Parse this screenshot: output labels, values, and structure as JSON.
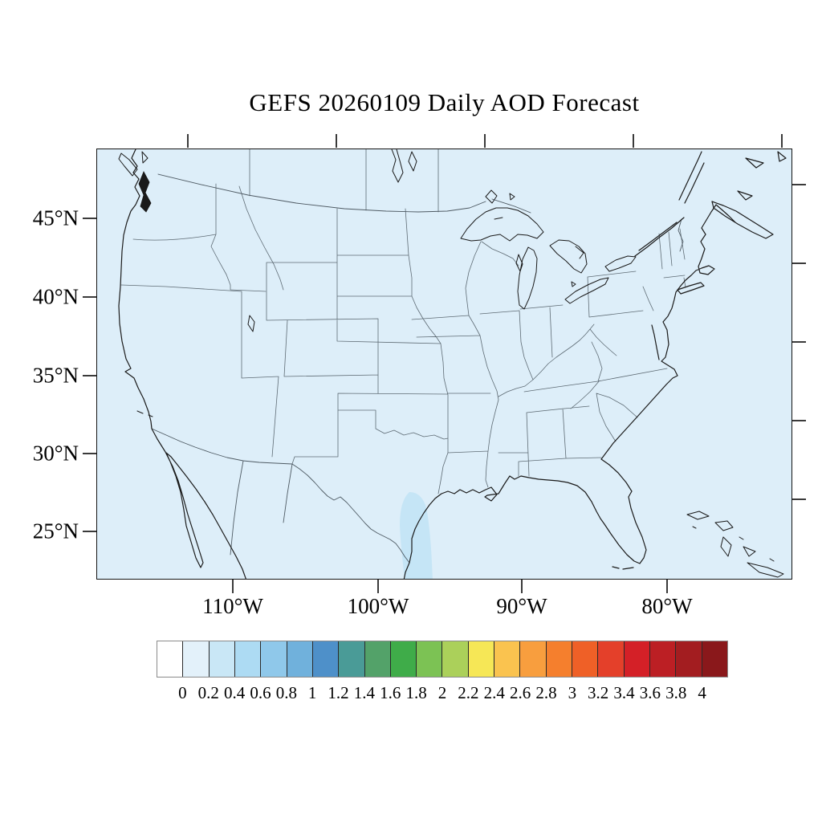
{
  "title": "GEFS 20260109 Daily AOD Forecast",
  "axes": {
    "lat_tick_labels": [
      "45°N",
      "40°N",
      "35°N",
      "30°N",
      "25°N"
    ],
    "lon_tick_labels": [
      "110°W",
      "100°W",
      "90°W",
      "80°W"
    ]
  },
  "colorbar": {
    "tick_labels": [
      "0",
      "0.2",
      "0.4",
      "0.6",
      "0.8",
      "1",
      "1.2",
      "1.4",
      "1.6",
      "1.8",
      "2",
      "2.2",
      "2.4",
      "2.6",
      "2.8",
      "3",
      "3.2",
      "3.4",
      "3.6",
      "3.8",
      "4"
    ],
    "colors": [
      "#FFFFFF",
      "#E3F1FA",
      "#C9E7F6",
      "#ADDBF3",
      "#8FC8EA",
      "#70B1DC",
      "#4E90C9",
      "#4A9B97",
      "#53A269",
      "#3FAC49",
      "#7CC254",
      "#ABD05A",
      "#F6E756",
      "#FAC34F",
      "#F89E3E",
      "#F57F2D",
      "#EF6027",
      "#E4402A",
      "#D42027",
      "#BC1F24",
      "#A31D20",
      "#8A181B"
    ]
  },
  "colors": {
    "map_background": "#DDEEF9",
    "aod_patch": "#C5E5F6",
    "coastline": "#1A1A1A",
    "political_border": "#5E6B74",
    "frame": "#151515"
  },
  "chart_data": {
    "type": "map",
    "title": "GEFS 20260109 Daily AOD Forecast",
    "variable": "Daily Aerosol Optical Depth (AOD)",
    "region": "Continental United States with S. Canada, N. Mexico, Bahamas/Cuba fringe",
    "colorbar_range": [
      0,
      4
    ],
    "colorbar_step": 0.2,
    "lat_ticks_deg_n": [
      45,
      40,
      35,
      30,
      25
    ],
    "lon_ticks_deg_w": [
      110,
      100,
      90,
      80
    ],
    "field_summary": "AOD below 0.2 (palest shade) over nearly the entire domain; one 0.2–0.4 patch along the south Texas Gulf coast near the bottom edge"
  }
}
